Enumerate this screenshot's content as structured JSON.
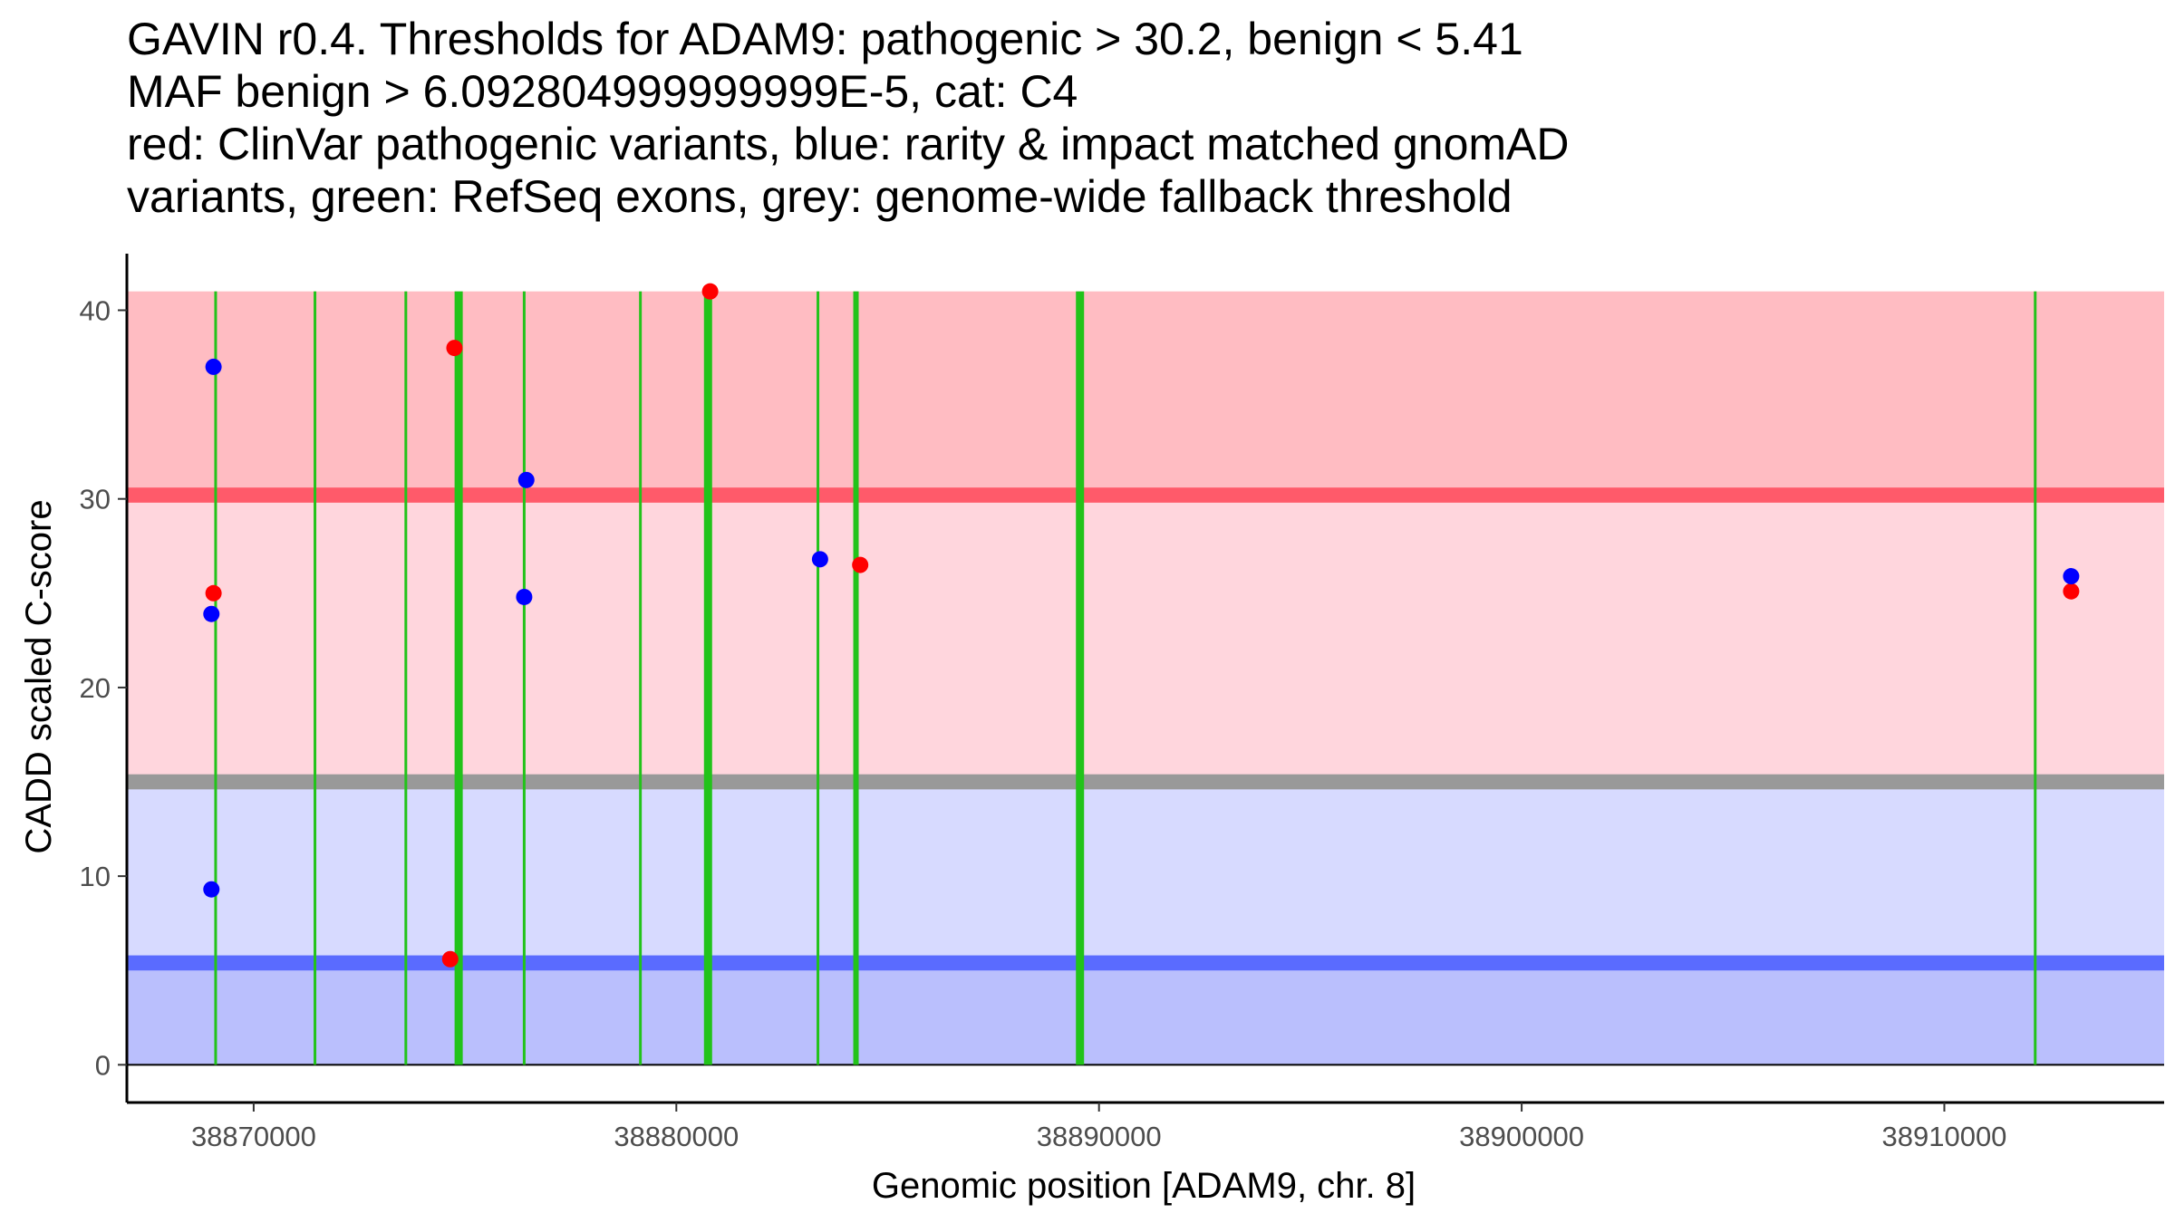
{
  "chart_data": {
    "type": "scatter",
    "title_lines": [
      "GAVIN r0.4. Thresholds for ADAM9: pathogenic > 30.2, benign < 5.41",
      "MAF benign > 6.092804999999999E-5, cat: C4",
      "red: ClinVar pathogenic variants, blue: rarity & impact matched gnomAD",
      "variants, green: RefSeq exons, grey: genome-wide fallback threshold"
    ],
    "xlabel": "Genomic position [ADAM9, chr. 8]",
    "ylabel": "CADD scaled C-score",
    "xlim": [
      38867000,
      38915200
    ],
    "ylim": [
      -2,
      43
    ],
    "x_ticks": [
      38870000,
      38880000,
      38890000,
      38900000,
      38910000
    ],
    "y_ticks": [
      0,
      10,
      20,
      30,
      40
    ],
    "regions": [
      {
        "name": "pathogenic-region",
        "y0": 30.2,
        "y1": 41,
        "color": "#ffbcc2"
      },
      {
        "name": "vus-region",
        "y0": 15,
        "y1": 30.2,
        "color": "#ffd6dd"
      },
      {
        "name": "gnomad-benign-region",
        "y0": 5.41,
        "y1": 15,
        "color": "#d7daff"
      },
      {
        "name": "benign-region",
        "y0": 0,
        "y1": 5.41,
        "color": "#babffd"
      }
    ],
    "threshold_lines": [
      {
        "name": "pathogenic-threshold-line",
        "y0": 29.8,
        "y1": 30.6,
        "color": "#ff5a6a"
      },
      {
        "name": "fallback-threshold-line",
        "y0": 14.6,
        "y1": 15.4,
        "color": "#999999"
      },
      {
        "name": "benign-threshold-line",
        "y0": 5.0,
        "y1": 5.8,
        "color": "#5a6bff"
      }
    ],
    "exons": [
      {
        "x": 38869100,
        "w": 1
      },
      {
        "x": 38871450,
        "w": 1
      },
      {
        "x": 38873600,
        "w": 1
      },
      {
        "x": 38874850,
        "w": 3
      },
      {
        "x": 38876400,
        "w": 1
      },
      {
        "x": 38879150,
        "w": 1
      },
      {
        "x": 38880750,
        "w": 3
      },
      {
        "x": 38883350,
        "w": 1
      },
      {
        "x": 38884250,
        "w": 2
      },
      {
        "x": 38889550,
        "w": 3
      },
      {
        "x": 38912150,
        "w": 1
      }
    ],
    "exon_color": "#22c31a",
    "series": [
      {
        "name": "ClinVar pathogenic variants",
        "color": "#ff0000",
        "points": [
          {
            "x": 38869050,
            "y": 25.0
          },
          {
            "x": 38874750,
            "y": 38.0
          },
          {
            "x": 38874650,
            "y": 5.6
          },
          {
            "x": 38880800,
            "y": 41.0
          },
          {
            "x": 38884350,
            "y": 26.5
          },
          {
            "x": 38913000,
            "y": 25.1
          }
        ]
      },
      {
        "name": "rarity & impact matched gnomAD variants",
        "color": "#0000ff",
        "points": [
          {
            "x": 38869050,
            "y": 37.0
          },
          {
            "x": 38869000,
            "y": 23.9
          },
          {
            "x": 38869000,
            "y": 9.3
          },
          {
            "x": 38876450,
            "y": 31.0
          },
          {
            "x": 38876400,
            "y": 24.8
          },
          {
            "x": 38883400,
            "y": 26.8
          },
          {
            "x": 38913000,
            "y": 25.9
          }
        ]
      }
    ]
  }
}
